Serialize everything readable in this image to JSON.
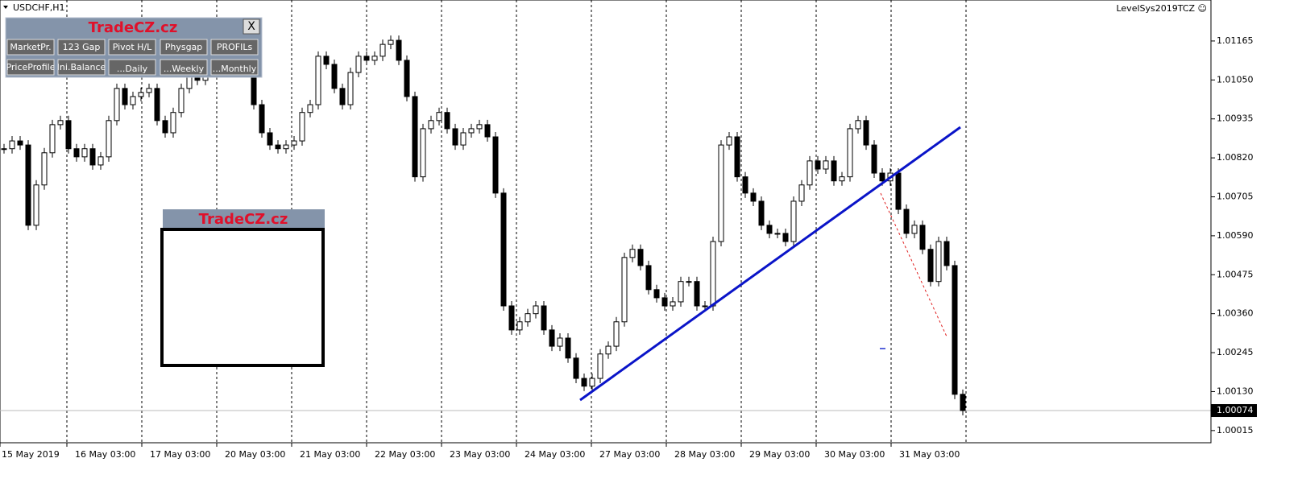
{
  "window": {
    "symbol": "USDCHF,H1",
    "indicator": "LevelSys2019TCZ ☺",
    "panel": {
      "title": "TradeCZ.cz",
      "close": "X",
      "buttons_row1": [
        "MarketPr.",
        "123 Gap",
        "Pivot H/L",
        "Physgap",
        "PROFILs"
      ],
      "buttons_row2": [
        "PriceProfile",
        "Ini.Balance",
        "...Daily",
        "...Weekly",
        "...Monthly"
      ]
    },
    "box_title": "TradeCZ.cz"
  },
  "chart_data": {
    "type": "candlestick",
    "x_labels": [
      "15 May 2019",
      "16 May 03:00",
      "17 May 03:00",
      "20 May 03:00",
      "21 May 03:00",
      "22 May 03:00",
      "23 May 03:00",
      "24 May 03:00",
      "27 May 03:00",
      "28 May 03:00",
      "29 May 03:00",
      "30 May 03:00",
      "31 May 03:00"
    ],
    "values": [
      1.00847,
      1.0087,
      1.00858,
      1.00621,
      1.0074,
      1.00835,
      1.00918,
      1.0093,
      1.00847,
      1.00823,
      1.00847,
      1.00799,
      1.00823,
      1.0093,
      1.01025,
      1.00977,
      1.01001,
      1.01013,
      1.01025,
      1.0093,
      1.00894,
      1.00954,
      1.01025,
      1.01072,
      1.01049,
      1.01096,
      1.01072,
      1.01096,
      1.01084,
      1.01144,
      1.01096,
      1.00977,
      1.00894,
      1.00858,
      1.00847,
      1.00858,
      1.0087,
      1.00954,
      1.00977,
      1.0112,
      1.01096,
      1.01025,
      1.00977,
      1.01072,
      1.0112,
      1.01108,
      1.0112,
      1.01155,
      1.01167,
      1.01108,
      1.01001,
      1.00764,
      1.00906,
      1.0093,
      1.00954,
      1.00906,
      1.00858,
      1.00894,
      1.00906,
      1.00918,
      1.00882,
      1.00716,
      1.00383,
      1.00312,
      1.00336,
      1.0036,
      1.00383,
      1.00312,
      1.00264,
      1.00288,
      1.00229,
      1.00169,
      1.00146,
      1.00169,
      1.00241,
      1.00264,
      1.00336,
      1.00526,
      1.0055,
      1.00502,
      1.00431,
      1.00407,
      1.00383,
      1.00395,
      1.00455,
      1.00455,
      1.00383,
      1.00383,
      1.00573,
      1.00858,
      1.00882,
      1.00764,
      1.00716,
      1.00692,
      1.00621,
      1.00597,
      1.00597,
      1.00573,
      1.00692,
      1.0074,
      1.00811,
      1.00787,
      1.00811,
      1.00752,
      1.00764,
      1.00906,
      1.0093,
      1.00858,
      1.00775,
      1.00752,
      1.00775,
      1.00668,
      1.00597,
      1.00621,
      1.0055,
      1.00455,
      1.00573,
      1.00502,
      1.00122,
      1.00074
    ],
    "color": "#000000",
    "ylim": [
      0.99979,
      1.01286
    ],
    "yticks": [
      {
        "value": 1.01165,
        "label": "1.01165"
      },
      {
        "value": 1.0105,
        "label": "1.01050"
      },
      {
        "value": 1.00935,
        "label": "1.00935"
      },
      {
        "value": 1.0082,
        "label": "1.00820"
      },
      {
        "value": 1.00705,
        "label": "1.00705"
      },
      {
        "value": 1.0059,
        "label": "1.00590"
      },
      {
        "value": 1.00475,
        "label": "1.00475"
      },
      {
        "value": 1.0036,
        "label": "1.00360"
      },
      {
        "value": 1.00245,
        "label": "1.00245"
      },
      {
        "value": 1.0013,
        "label": "1.00130"
      },
      {
        "value": 1.00015,
        "label": "1.00015"
      }
    ],
    "current": {
      "value": 1.00074,
      "label": "1.00074"
    },
    "grid": true
  }
}
